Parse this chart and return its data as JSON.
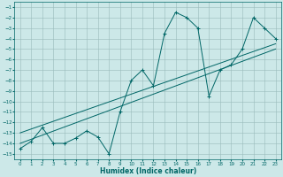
{
  "title": "",
  "xlabel": "Humidex (Indice chaleur)",
  "bg_color": "#cce8e8",
  "grid_color": "#99bbbb",
  "line_color": "#006666",
  "xlim": [
    -0.5,
    23.5
  ],
  "ylim": [
    -15.5,
    -0.5
  ],
  "xticks": [
    0,
    1,
    2,
    3,
    4,
    5,
    6,
    7,
    8,
    9,
    10,
    11,
    12,
    13,
    14,
    15,
    16,
    17,
    18,
    19,
    20,
    21,
    22,
    23
  ],
  "yticks": [
    -15,
    -14,
    -13,
    -12,
    -11,
    -10,
    -9,
    -8,
    -7,
    -6,
    -5,
    -4,
    -3,
    -2,
    -1
  ],
  "curve_x": [
    0,
    1,
    2,
    3,
    4,
    5,
    6,
    7,
    8,
    9,
    10,
    11,
    12,
    13,
    14,
    15,
    16,
    17,
    18,
    19,
    20,
    21,
    22,
    23
  ],
  "curve_y": [
    -14.5,
    -13.8,
    -12.5,
    -14.0,
    -14.0,
    -13.5,
    -12.8,
    -13.4,
    -15.0,
    -11.0,
    -8.0,
    -7.0,
    -8.5,
    -3.5,
    -1.5,
    -2.0,
    -3.0,
    -9.5,
    -7.0,
    -6.5,
    -5.0,
    -2.0,
    -3.0,
    -4.0
  ],
  "line1_x": [
    0,
    23
  ],
  "line1_y": [
    -14.0,
    -5.0
  ],
  "line2_x": [
    0,
    23
  ],
  "line2_y": [
    -13.0,
    -4.5
  ]
}
